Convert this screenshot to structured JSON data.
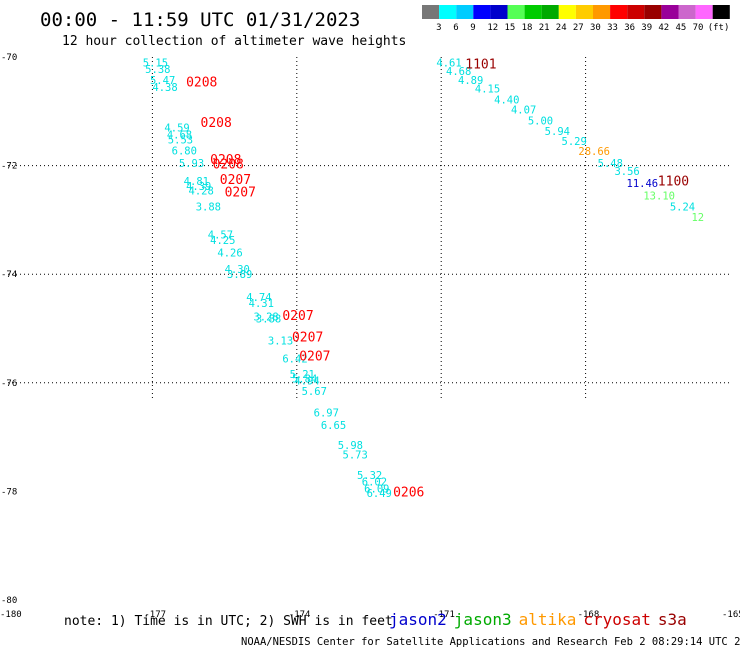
{
  "header": {
    "title": "00:00 - 11:59 UTC 01/31/2023",
    "subtitle": "12 hour collection of altimeter wave heights"
  },
  "colorbar": {
    "colors": [
      "#777777",
      "#00ffff",
      "#00ccff",
      "#0000ff",
      "#0000cc",
      "#55ff55",
      "#00cc00",
      "#00aa00",
      "#ffff00",
      "#ffcc00",
      "#ff9900",
      "#ff0000",
      "#cc0000",
      "#990000",
      "#990099",
      "#cc66cc",
      "#ff66ff",
      "#000000"
    ],
    "labels": [
      "3",
      "6",
      "9",
      "12",
      "15",
      "18",
      "21",
      "24",
      "27",
      "30",
      "33",
      "36",
      "39",
      "42",
      "45",
      "70"
    ],
    "unit": "(ft)"
  },
  "footer": {
    "note": "note: 1) Time is in UTC; 2) SWH is in feet",
    "credit": "NOAA/NESDIS Center for Satellite Applications and Research   Feb  2 08:29:14 UTC 2023"
  },
  "legend": [
    {
      "name": "jason2",
      "color": "#0000cc"
    },
    {
      "name": "jason3",
      "color": "#00aa00"
    },
    {
      "name": "altika",
      "color": "#ff9900"
    },
    {
      "name": "cryosat",
      "color": "#cc0000"
    },
    {
      "name": "s3a",
      "color": "#990000"
    }
  ],
  "chart_data": {
    "type": "scatter",
    "title": "00:00 - 11:59 UTC 01/31/2023",
    "subtitle": "12 hour collection of altimeter wave heights",
    "x_ticks": [
      "-180",
      "-177",
      "-174",
      "-171",
      "-168",
      "-165"
    ],
    "y_ticks": [
      "-70",
      "-72",
      "-74",
      "-76",
      "-78",
      "-80"
    ],
    "xlim": [
      -180,
      -165
    ],
    "ylim": [
      -80,
      -70
    ],
    "grid": true,
    "series": [
      {
        "name": "s3a",
        "color": "#00e0e0",
        "points": [
          {
            "lon": -177.2,
            "lat": -70.1,
            "label": "5.15",
            "color": "#00e0e0"
          },
          {
            "lon": -177.15,
            "lat": -70.22,
            "label": "5.38",
            "color": "#00e0e0"
          },
          {
            "lon": -177.05,
            "lat": -70.42,
            "label": "5.47",
            "color": "#00e0e0"
          },
          {
            "lon": -177.0,
            "lat": -70.55,
            "label": "4.38",
            "color": "#00e0e0"
          },
          {
            "lon": -176.75,
            "lat": -71.3,
            "label": "4.59",
            "color": "#00e0e0"
          },
          {
            "lon": -176.7,
            "lat": -71.43,
            "label": "4.68",
            "color": "#00e0e0"
          },
          {
            "lon": -176.68,
            "lat": -71.52,
            "label": "5.53",
            "color": "#00e0e0"
          },
          {
            "lon": -176.6,
            "lat": -71.72,
            "label": "6.80",
            "color": "#00e0e0"
          },
          {
            "lon": -176.45,
            "lat": -71.95,
            "label": "5.93",
            "color": "#00e0e0"
          },
          {
            "lon": -176.35,
            "lat": -72.28,
            "label": "4.81",
            "color": "#00e0e0"
          },
          {
            "lon": -176.3,
            "lat": -72.38,
            "label": "4.39",
            "color": "#00e0e0"
          },
          {
            "lon": -176.25,
            "lat": -72.46,
            "label": "4.28",
            "color": "#00e0e0"
          },
          {
            "lon": -176.1,
            "lat": -72.75,
            "label": "3.88",
            "color": "#00e0e0"
          },
          {
            "lon": -175.85,
            "lat": -73.27,
            "label": "4.57",
            "color": "#00e0e0"
          },
          {
            "lon": -175.8,
            "lat": -73.37,
            "label": "4.25",
            "color": "#00e0e0"
          },
          {
            "lon": -175.65,
            "lat": -73.6,
            "label": "4.26",
            "color": "#00e0e0"
          },
          {
            "lon": -175.5,
            "lat": -73.9,
            "label": "4.30",
            "color": "#00e0e0"
          },
          {
            "lon": -175.45,
            "lat": -74.0,
            "label": "3.89",
            "color": "#00e0e0"
          },
          {
            "lon": -175.05,
            "lat": -74.42,
            "label": "4.74",
            "color": "#00e0e0"
          },
          {
            "lon": -175.0,
            "lat": -74.53,
            "label": "4.31",
            "color": "#00e0e0"
          },
          {
            "lon": -174.9,
            "lat": -74.78,
            "label": "3.28",
            "color": "#00e0e0"
          },
          {
            "lon": -174.85,
            "lat": -74.82,
            "label": "3.88",
            "color": "#00e0e0"
          },
          {
            "lon": -174.6,
            "lat": -75.22,
            "label": "3.13",
            "color": "#00e0e0"
          },
          {
            "lon": -174.3,
            "lat": -75.55,
            "label": "6.42",
            "color": "#00e0e0"
          },
          {
            "lon": -174.15,
            "lat": -75.84,
            "label": "5.21",
            "color": "#00e0e0"
          },
          {
            "lon": -174.1,
            "lat": -75.92,
            "label": "5.84",
            "color": "#00e0e0"
          },
          {
            "lon": -174.05,
            "lat": -75.96,
            "label": "4.94",
            "color": "#00e0e0"
          },
          {
            "lon": -173.9,
            "lat": -76.15,
            "label": "5.67",
            "color": "#00e0e0"
          },
          {
            "lon": -173.65,
            "lat": -76.55,
            "label": "6.97",
            "color": "#00e0e0"
          },
          {
            "lon": -173.5,
            "lat": -76.78,
            "label": "6.65",
            "color": "#00e0e0"
          },
          {
            "lon": -173.15,
            "lat": -77.15,
            "label": "5.98",
            "color": "#00e0e0"
          },
          {
            "lon": -173.05,
            "lat": -77.32,
            "label": "5.73",
            "color": "#00e0e0"
          },
          {
            "lon": -172.75,
            "lat": -77.7,
            "label": "5.32",
            "color": "#00e0e0"
          },
          {
            "lon": -172.65,
            "lat": -77.82,
            "label": "6.02",
            "color": "#00e0e0"
          },
          {
            "lon": -172.6,
            "lat": -77.95,
            "label": "6.09",
            "color": "#00e0e0"
          },
          {
            "lon": -172.55,
            "lat": -78.03,
            "label": "6.49",
            "color": "#00e0e0"
          }
        ]
      },
      {
        "name": "cryosat",
        "color": "#00e0e0",
        "points": [
          {
            "lon": -171.1,
            "lat": -70.1,
            "label": "4.61",
            "color": "#00e0e0"
          },
          {
            "lon": -170.9,
            "lat": -70.26,
            "label": "4.68",
            "color": "#00e0e0"
          },
          {
            "lon": -170.65,
            "lat": -70.42,
            "label": "4.89",
            "color": "#00e0e0"
          },
          {
            "lon": -170.3,
            "lat": -70.58,
            "label": "4.15",
            "color": "#00e0e0"
          },
          {
            "lon": -169.9,
            "lat": -70.78,
            "label": "4.40",
            "color": "#00e0e0"
          },
          {
            "lon": -169.55,
            "lat": -70.97,
            "label": "4.07",
            "color": "#00e0e0"
          },
          {
            "lon": -169.2,
            "lat": -71.17,
            "label": "5.00",
            "color": "#00e0e0"
          },
          {
            "lon": -168.85,
            "lat": -71.36,
            "label": "5.94",
            "color": "#00e0e0"
          },
          {
            "lon": -168.5,
            "lat": -71.55,
            "label": "5.29",
            "color": "#00e0e0"
          },
          {
            "lon": -168.15,
            "lat": -71.73,
            "label": "28.66",
            "color": "#ff9900"
          },
          {
            "lon": -167.75,
            "lat": -71.95,
            "label": "5.48",
            "color": "#00e0e0"
          },
          {
            "lon": -167.4,
            "lat": -72.1,
            "label": "3.56",
            "color": "#00e0e0"
          },
          {
            "lon": -167.15,
            "lat": -72.32,
            "label": "11.46",
            "color": "#0000cc"
          },
          {
            "lon": -166.8,
            "lat": -72.55,
            "label": "13.10",
            "color": "#66ff66"
          },
          {
            "lon": -166.25,
            "lat": -72.75,
            "label": "5.24",
            "color": "#00e0e0"
          },
          {
            "lon": -165.8,
            "lat": -72.95,
            "label": "12",
            "color": "#66ff66"
          }
        ]
      }
    ],
    "annotations": [
      {
        "label": "0208",
        "lon": -176.3,
        "lat": -70.45,
        "color": "#ff0000"
      },
      {
        "label": "0208",
        "lon": -176.0,
        "lat": -71.2,
        "color": "#ff0000"
      },
      {
        "label": "0208",
        "lon": -175.8,
        "lat": -71.88,
        "color": "#ff0000"
      },
      {
        "label": "0208",
        "lon": -175.75,
        "lat": -71.96,
        "color": "#ff0000"
      },
      {
        "label": "0207",
        "lon": -175.6,
        "lat": -72.25,
        "color": "#ff0000"
      },
      {
        "label": "0207",
        "lon": -175.5,
        "lat": -72.48,
        "color": "#ff0000"
      },
      {
        "label": "0207",
        "lon": -174.3,
        "lat": -74.75,
        "color": "#ff0000"
      },
      {
        "label": "0207",
        "lon": -174.1,
        "lat": -75.15,
        "color": "#ff0000"
      },
      {
        "label": "0207",
        "lon": -173.95,
        "lat": -75.5,
        "color": "#ff0000"
      },
      {
        "label": "0206",
        "lon": -172.0,
        "lat": -78.0,
        "color": "#ff0000"
      },
      {
        "label": "1101",
        "lon": -170.5,
        "lat": -70.12,
        "color": "#990000"
      },
      {
        "label": "1100",
        "lon": -166.5,
        "lat": -72.27,
        "color": "#990000"
      }
    ]
  }
}
